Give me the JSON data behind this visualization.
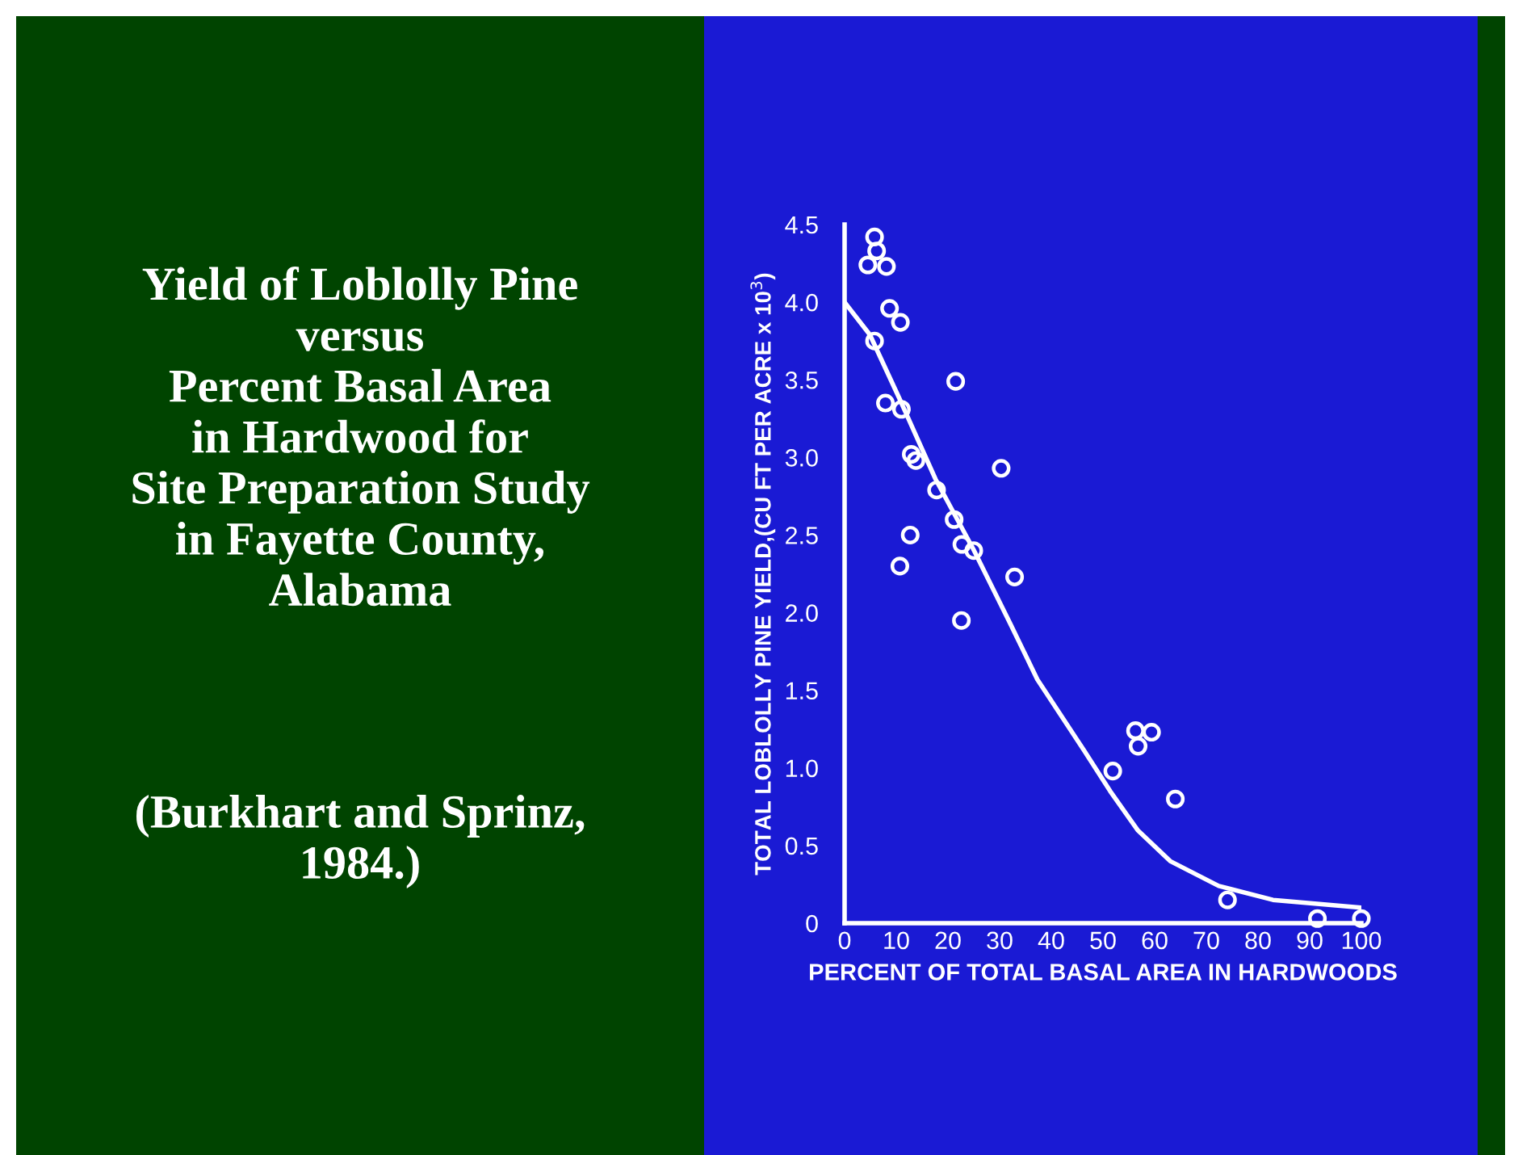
{
  "chart_data": {
    "type": "scatter",
    "title": "Yield of Loblolly Pine\nversus\nPercent Basal Area\nin Hardwood for\nSite Preparation Study\nin Fayette County,\nAlabama",
    "annotations": [
      "(Burkhart and Sprinz,\n1984.)"
    ],
    "xlabel": "PERCENT OF TOTAL BASAL AREA IN HARDWOODS",
    "ylabel": "TOTAL LOBLOLLY PINE YIELD,(CU FT PER ACRE x 10$^{3}$)",
    "xlim": [
      0,
      100
    ],
    "xticks": [
      0,
      10,
      20,
      30,
      40,
      50,
      60,
      70,
      80,
      90,
      100
    ],
    "ylim": [
      0,
      4.5
    ],
    "yticks": [
      0,
      0.5,
      {
        "value": 1,
        "label": "1.0"
      },
      1.5,
      {
        "value": 2,
        "label": "2.0"
      },
      2.5,
      {
        "value": 3,
        "label": "3.0"
      },
      3.5,
      {
        "value": 4,
        "label": "4.0"
      },
      4.5
    ],
    "grid": false,
    "series": [
      {
        "color": "#ffffff",
        "marker": "circle",
        "x": [
          4.5,
          5.8,
          6.2,
          8.1,
          8.7,
          10.8,
          5.8,
          7.9,
          11.0,
          12.9,
          13.8,
          12.7,
          10.7,
          17.8,
          21.2,
          22.7,
          25,
          21.5,
          30.3,
          32.9,
          22.6,
          51.9,
          56.3,
          56.8,
          59.4,
          64,
          74.1,
          91.5,
          100
        ],
        "values": [
          4.24,
          4.42,
          4.33,
          4.23,
          3.96,
          3.87,
          3.75,
          3.35,
          3.31,
          3.02,
          2.98,
          2.5,
          2.3,
          2.79,
          2.6,
          2.44,
          2.4,
          3.49,
          2.93,
          2.23,
          1.95,
          0.98,
          1.24,
          1.14,
          1.23,
          0.8,
          0.15,
          0.03,
          0.03
        ]
      },
      {
        "type": "line",
        "color": "#ffffff",
        "x": [
          0,
          4.9,
          10.6,
          17.6,
          24.9,
          32.2,
          37.3,
          46.2,
          51.4,
          56.7,
          63,
          72.4,
          82.9,
          100
        ],
        "values": [
          4.0,
          3.79,
          3.38,
          2.86,
          2.41,
          1.92,
          1.57,
          1.12,
          0.85,
          0.6,
          0.4,
          0.24,
          0.15,
          0.1
        ]
      }
    ]
  }
}
